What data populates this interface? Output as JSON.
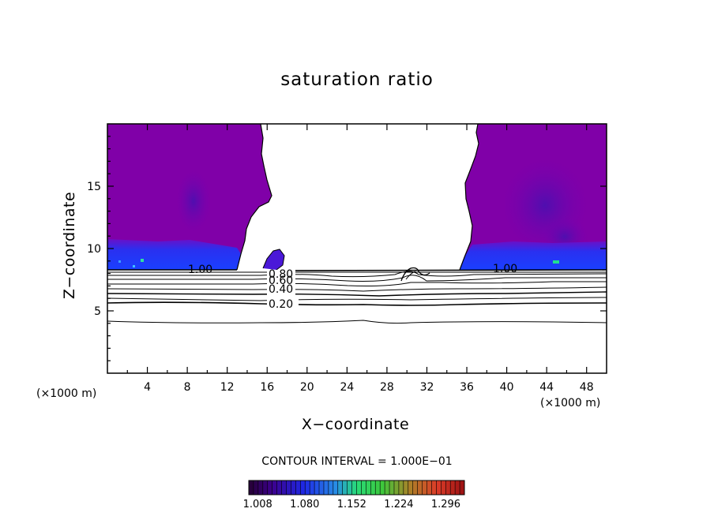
{
  "chart_data": {
    "type": "heatmap",
    "title": "saturation ratio",
    "xlabel": "X−coordinate",
    "ylabel": "Z−coordinate",
    "x_unit_left": "(×1000 m)",
    "x_unit_right": "(×1000 m)",
    "xlim": [
      0,
      50
    ],
    "ylim": [
      0,
      20
    ],
    "x_ticks": [
      4,
      8,
      12,
      16,
      20,
      24,
      28,
      32,
      36,
      40,
      44,
      48
    ],
    "y_ticks": [
      5,
      10,
      15
    ],
    "contour_interval_text": "CONTOUR INTERVAL = 1.000E−01",
    "contour_labels": [
      "1.00",
      "0.80",
      "0.60",
      "0.40",
      "0.20",
      "1.00"
    ],
    "colorbar": {
      "tick_labels": [
        "1.008",
        "1.080",
        "1.152",
        "1.224",
        "1.296"
      ],
      "range": [
        1.0,
        1.33
      ]
    },
    "colors": {
      "purple": "#8000a8",
      "blue": "#2030f0",
      "deep_blue": "#5a10c0"
    }
  }
}
